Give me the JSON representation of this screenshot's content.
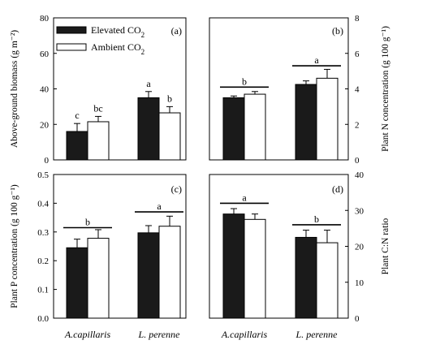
{
  "legend": [
    {
      "label": "Elevated CO",
      "sub": "2",
      "fill": "#1a1a1a"
    },
    {
      "label": "Ambient CO",
      "sub": "2",
      "fill": "#ffffff"
    }
  ],
  "chart_data": [
    {
      "panel_label": "(a)",
      "type": "bar",
      "categories": [
        "A.capillaris",
        "L. perenne"
      ],
      "series": [
        {
          "name": "Elevated CO2",
          "values": [
            16,
            35
          ],
          "errors": [
            4.5,
            3.5
          ],
          "fill": "#1a1a1a"
        },
        {
          "name": "Ambient CO2",
          "values": [
            21.5,
            26.5
          ],
          "errors": [
            3,
            3.5
          ],
          "fill": "#ffffff"
        }
      ],
      "ylabel": "Above-ground biomass (g m⁻²)",
      "ylabel_side": "left",
      "ylim": [
        0,
        80
      ],
      "yticks": [
        0,
        20,
        40,
        60,
        80
      ],
      "letters": [
        [
          "c",
          "bc"
        ],
        [
          "a",
          "b"
        ]
      ],
      "group_letters": [],
      "show_categories": false
    },
    {
      "panel_label": "(b)",
      "type": "bar",
      "categories": [
        "A.capillaris",
        "L. perenne"
      ],
      "series": [
        {
          "name": "Elevated CO2",
          "values": [
            3.5,
            4.25
          ],
          "errors": [
            0.1,
            0.2
          ],
          "fill": "#1a1a1a"
        },
        {
          "name": "Ambient CO2",
          "values": [
            3.7,
            4.6
          ],
          "errors": [
            0.15,
            0.5
          ],
          "fill": "#ffffff"
        }
      ],
      "ylabel": "Plant N concentration (g 100 g⁻¹)",
      "ylabel_side": "right",
      "ylim": [
        0,
        8
      ],
      "yticks": [
        0,
        2,
        4,
        6,
        8
      ],
      "letters": [],
      "group_letters": [
        {
          "letter": "b",
          "value": 4.1
        },
        {
          "letter": "a",
          "value": 5.3
        }
      ],
      "show_categories": false
    },
    {
      "panel_label": "(c)",
      "type": "bar",
      "categories": [
        "A.capillaris",
        "L. perenne"
      ],
      "series": [
        {
          "name": "Elevated CO2",
          "values": [
            0.245,
            0.297
          ],
          "errors": [
            0.03,
            0.025
          ],
          "fill": "#1a1a1a"
        },
        {
          "name": "Ambient CO2",
          "values": [
            0.278,
            0.32
          ],
          "errors": [
            0.03,
            0.035
          ],
          "fill": "#ffffff"
        }
      ],
      "ylabel": "Plant P concentration (g 100 g⁻¹)",
      "ylabel_side": "left",
      "ylim": [
        0,
        0.5
      ],
      "yticks": [
        "0.0",
        "0.1",
        "0.2",
        "0.3",
        "0.4",
        "0.5"
      ],
      "letters": [],
      "group_letters": [
        {
          "letter": "b",
          "value": 0.315
        },
        {
          "letter": "a",
          "value": 0.37
        }
      ],
      "show_categories": true
    },
    {
      "panel_label": "(d)",
      "type": "bar",
      "categories": [
        "A.capillaris",
        "L. perenne"
      ],
      "series": [
        {
          "name": "Elevated CO2",
          "values": [
            29,
            22.5
          ],
          "errors": [
            1.5,
            2
          ],
          "fill": "#1a1a1a"
        },
        {
          "name": "Ambient CO2",
          "values": [
            27.5,
            21
          ],
          "errors": [
            1.5,
            3.5
          ],
          "fill": "#ffffff"
        }
      ],
      "ylabel": "Plant C:N ratio",
      "ylabel_side": "right",
      "ylim": [
        0,
        40
      ],
      "yticks": [
        0,
        10,
        20,
        30,
        40
      ],
      "letters": [],
      "group_letters": [
        {
          "letter": "a",
          "value": 32
        },
        {
          "letter": "b",
          "value": 26
        }
      ],
      "show_categories": true
    }
  ]
}
